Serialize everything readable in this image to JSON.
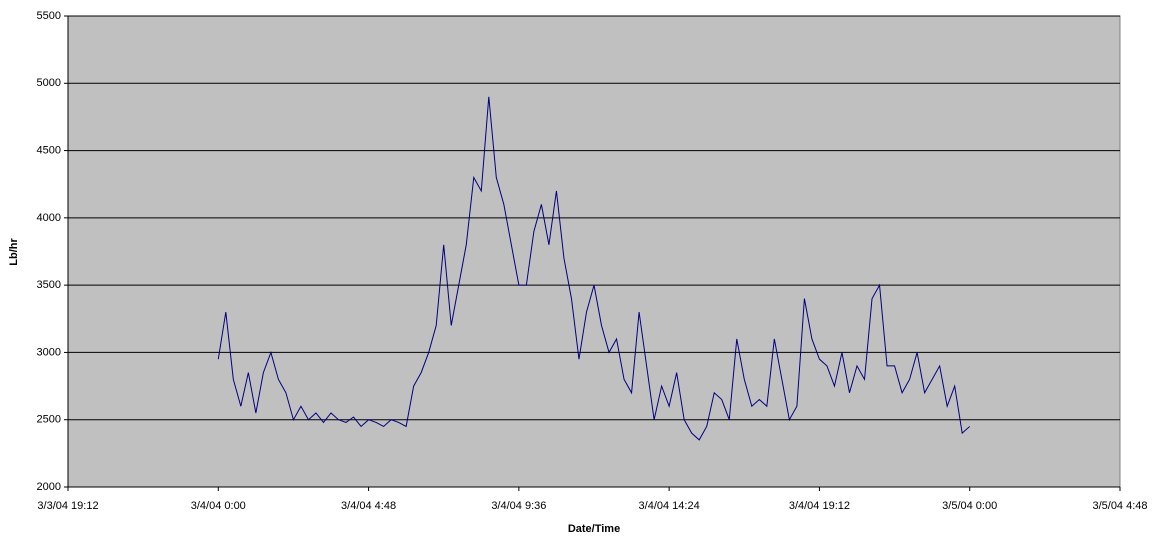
{
  "chart_data": {
    "type": "line",
    "xlabel": "Date/Time",
    "ylabel": "Lb/hr",
    "x": [
      38050,
      38050.01,
      38050.02,
      38050.03,
      38050.04,
      38050.05,
      38050.06,
      38050.07,
      38050.08,
      38050.09,
      38050.1,
      38050.11,
      38050.12,
      38050.13,
      38050.14,
      38050.15,
      38050.16,
      38050.17,
      38050.18,
      38050.19,
      38050.2,
      38050.21,
      38050.22,
      38050.23,
      38050.24,
      38050.25,
      38050.26,
      38050.27,
      38050.28,
      38050.29,
      38050.3,
      38050.31,
      38050.32,
      38050.33,
      38050.34,
      38050.35,
      38050.36,
      38050.37,
      38050.38,
      38050.39,
      38050.4,
      38050.41,
      38050.42,
      38050.43,
      38050.44,
      38050.45,
      38050.46,
      38050.47,
      38050.48,
      38050.49,
      38050.5,
      38050.51,
      38050.52,
      38050.53,
      38050.54,
      38050.55,
      38050.56,
      38050.57,
      38050.58,
      38050.59,
      38050.6,
      38050.61,
      38050.62,
      38050.63,
      38050.64,
      38050.65,
      38050.66,
      38050.67,
      38050.68,
      38050.69,
      38050.7,
      38050.71,
      38050.72,
      38050.73,
      38050.74,
      38050.75,
      38050.76,
      38050.77,
      38050.78,
      38050.79,
      38050.8,
      38050.81,
      38050.82,
      38050.83,
      38050.84,
      38050.85,
      38050.86,
      38050.87,
      38050.88,
      38050.89,
      38050.9,
      38050.91,
      38050.92,
      38050.93,
      38050.94,
      38050.95,
      38050.96,
      38050.97,
      38050.98,
      38050.99,
      38051
    ],
    "series": [
      {
        "name": "Lb/hr",
        "color": "#000080",
        "values": [
          2950,
          3300,
          2800,
          2600,
          2850,
          2550,
          2850,
          3000,
          2800,
          2700,
          2500,
          2600,
          2500,
          2550,
          2480,
          2550,
          2500,
          2480,
          2520,
          2450,
          2500,
          2480,
          2450,
          2500,
          2480,
          2450,
          2750,
          2850,
          3000,
          3200,
          3800,
          3200,
          3500,
          3800,
          4300,
          4200,
          4900,
          4300,
          4100,
          3800,
          3500,
          3500,
          3900,
          4100,
          3800,
          4200,
          3700,
          3400,
          2950,
          3300,
          3500,
          3200,
          3000,
          3100,
          2800,
          2700,
          3300,
          2900,
          2500,
          2750,
          2600,
          2850,
          2500,
          2400,
          2350,
          2450,
          2700,
          2650,
          2500,
          3100,
          2800,
          2600,
          2650,
          2600,
          3100,
          2800,
          2500,
          2600,
          3400,
          3100,
          2950,
          2900,
          2750,
          3000,
          2700,
          2900,
          2800,
          3400,
          3500,
          2900,
          2900,
          2700,
          2800,
          3000,
          2700,
          2800,
          2900,
          2600,
          2750,
          2400,
          2450
        ]
      }
    ],
    "xlim": [
      38049.8,
      38051.2
    ],
    "xticks": [
      {
        "value": 38049.8,
        "label": "3/3/04 19:12"
      },
      {
        "value": 38050,
        "label": "3/4/04 0:00"
      },
      {
        "value": 38050.2,
        "label": "3/4/04 4:48"
      },
      {
        "value": 38050.4,
        "label": "3/4/04 9:36"
      },
      {
        "value": 38050.6,
        "label": "3/4/04 14:24"
      },
      {
        "value": 38050.8,
        "label": "3/4/04 19:12"
      },
      {
        "value": 38051,
        "label": "3/5/04 0:00"
      },
      {
        "value": 38051.2,
        "label": "3/5/04 4:48"
      }
    ],
    "ylim": [
      2000,
      5500
    ],
    "yticks": [
      2000,
      2500,
      3000,
      3500,
      4000,
      4500,
      5000,
      5500
    ],
    "grid": true,
    "plot_background": "#c0c0c0"
  }
}
